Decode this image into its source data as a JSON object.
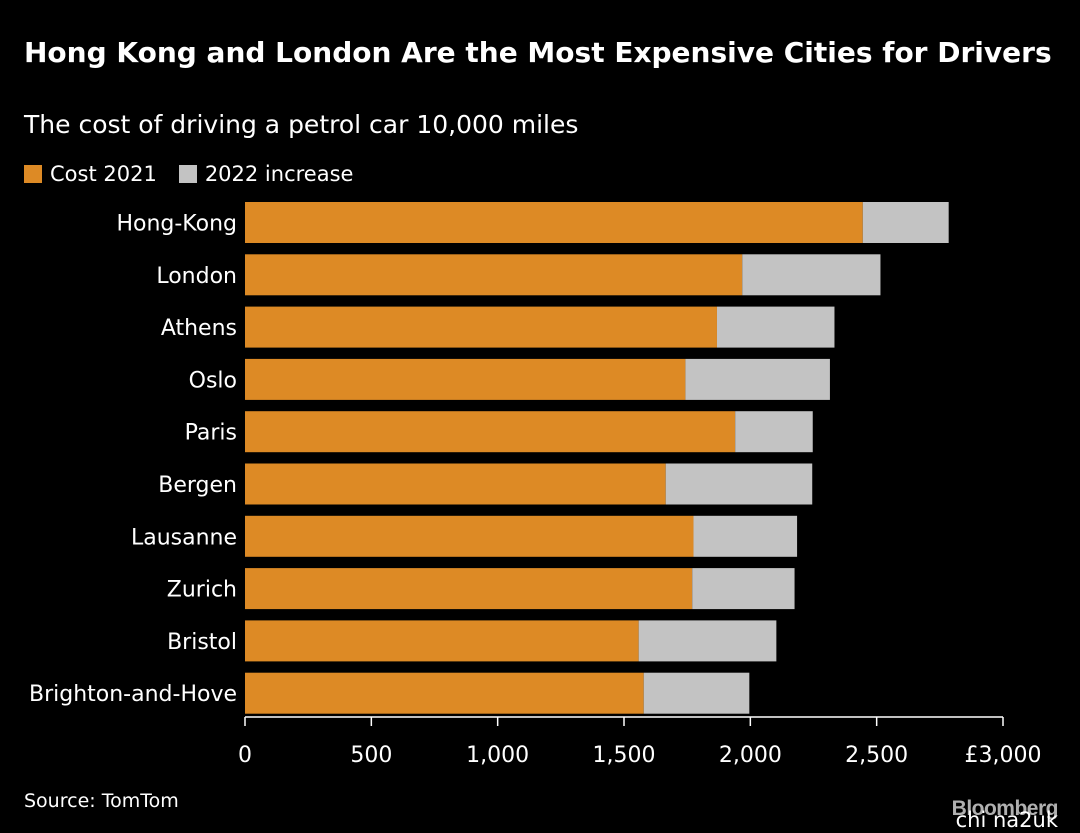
{
  "colors": {
    "cost": "#dd8a25",
    "increase": "#c3c3c3",
    "axis": "#ffffff"
  },
  "source": "Source: TomTom",
  "brand": "Bloomberg",
  "watermark": "chi na2uk",
  "chart_data": {
    "type": "bar",
    "orientation": "horizontal",
    "stacked": true,
    "title": "Hong Kong and London Are the Most Expensive Cities for Drivers",
    "subtitle": "The cost of driving a petrol car 10,000 miles",
    "legend": [
      "Cost 2021",
      "2022 increase"
    ],
    "legend_placement": "top-left",
    "categories": [
      "Hong-Kong",
      "London",
      "Athens",
      "Oslo",
      "Paris",
      "Bergen",
      "Lausanne",
      "Zurich",
      "Bristol",
      "Brighton-and-Hove"
    ],
    "series": [
      {
        "name": "Cost 2021",
        "values": [
          2445,
          1968,
          1868,
          1743,
          1940,
          1665,
          1775,
          1770,
          1558,
          1578
        ]
      },
      {
        "name": "2022 increase",
        "values": [
          340,
          547,
          465,
          572,
          307,
          580,
          410,
          405,
          545,
          418
        ]
      }
    ],
    "xlim": [
      0,
      3000
    ],
    "xticks": [
      0,
      500,
      1000,
      1500,
      2000,
      2500,
      3000
    ],
    "xtick_labels": [
      "0",
      "500",
      "1,000",
      "1,500",
      "2,000",
      "2,500",
      "£3,000"
    ],
    "grid": false
  }
}
